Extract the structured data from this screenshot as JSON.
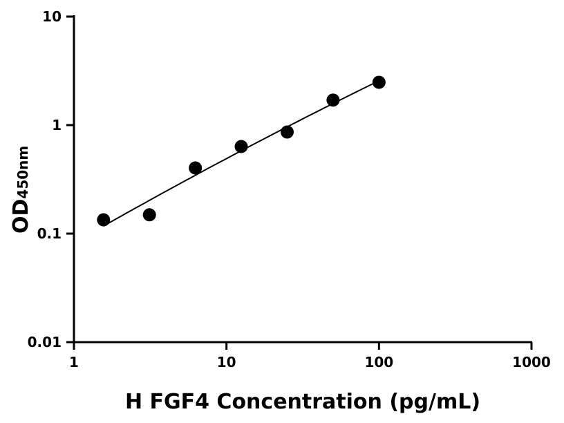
{
  "chart_data": {
    "type": "scatter",
    "xlabel": "H FGF4 Concentration (pg/mL)",
    "ylabel": "OD",
    "ylabel_subscript": "450nm",
    "xscale": "log",
    "yscale": "log",
    "xlim": [
      1,
      1000
    ],
    "ylim": [
      0.01,
      10
    ],
    "xticks": [
      "1",
      "10",
      "100",
      "1000"
    ],
    "yticks": [
      "0.01",
      "0.1",
      "1",
      "10"
    ],
    "grid": false,
    "marker_color": "#000000",
    "fit_curve": true,
    "x": [
      1.5625,
      3.125,
      6.25,
      12.5,
      25,
      50,
      100
    ],
    "y": [
      0.134,
      0.149,
      0.403,
      0.635,
      0.863,
      1.7,
      2.48
    ]
  }
}
